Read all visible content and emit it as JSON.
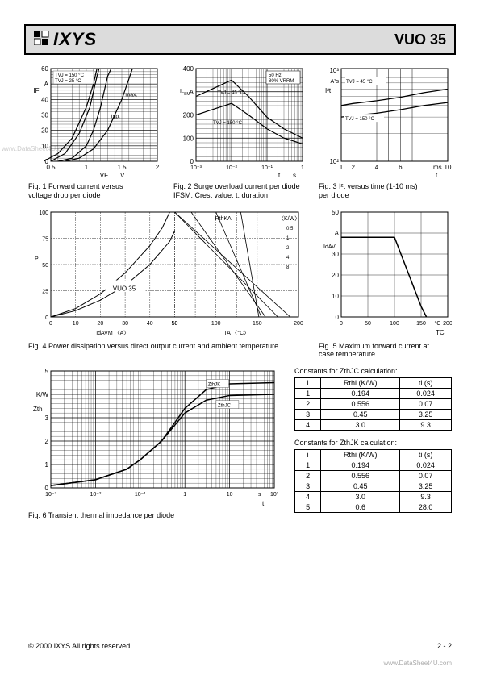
{
  "header": {
    "brand": "IXYS",
    "part": "VUO 35"
  },
  "fig1": {
    "caption": "Fig. 1  Forward current versus\n           voltage drop per diode",
    "xlabel": "VF",
    "xunit": "V",
    "ylabel": "IF",
    "yunit": "A",
    "xlim": [
      0.5,
      2
    ],
    "xticks": [
      "0.5",
      "1",
      "1.5",
      "2"
    ],
    "ylim": [
      0,
      60
    ],
    "yticks": [
      "0",
      "10",
      "20",
      "30",
      "40",
      "50",
      "60"
    ],
    "annotations": [
      "TVJ = 150 °C",
      "TVJ =  25 °C",
      "max.",
      "typ."
    ],
    "typ_curve": [
      [
        0.6,
        0
      ],
      [
        0.8,
        2
      ],
      [
        1.0,
        10
      ],
      [
        1.1,
        20
      ],
      [
        1.2,
        35
      ],
      [
        1.3,
        55
      ],
      [
        1.35,
        60
      ]
    ],
    "max_curve": [
      [
        0.7,
        0
      ],
      [
        0.9,
        2
      ],
      [
        1.1,
        8
      ],
      [
        1.3,
        20
      ],
      [
        1.5,
        40
      ],
      [
        1.65,
        60
      ]
    ],
    "curve150a": [
      [
        0.4,
        0
      ],
      [
        0.6,
        5
      ],
      [
        0.8,
        15
      ],
      [
        1.0,
        35
      ],
      [
        1.1,
        50
      ],
      [
        1.15,
        60
      ]
    ],
    "curve150b": [
      [
        0.5,
        0
      ],
      [
        0.7,
        5
      ],
      [
        0.9,
        18
      ],
      [
        1.05,
        35
      ],
      [
        1.15,
        55
      ],
      [
        1.18,
        60
      ]
    ],
    "grid_color": "#000",
    "line_color": "#000"
  },
  "fig2": {
    "caption": "Fig. 2  Surge overload current per diode\n           IFSM: Crest value. t: duration",
    "xlabel": "t",
    "xunit": "s",
    "ylabel": "IFSM",
    "yunit": "A",
    "xlim": [
      0.001,
      1
    ],
    "xticks": [
      "10⁻³",
      "10⁻²",
      "10⁻¹",
      "1"
    ],
    "ylim": [
      0,
      400
    ],
    "yticks": [
      "0",
      "100",
      "200",
      "300",
      "400"
    ],
    "annotations": [
      "50 Hz\n80% VRRM",
      "TVJ =  45 °C",
      "TVJ = 150 °C"
    ],
    "curve45": [
      [
        0.001,
        280
      ],
      [
        0.01,
        350
      ],
      [
        0.03,
        280
      ],
      [
        0.1,
        190
      ],
      [
        0.3,
        140
      ],
      [
        1,
        100
      ]
    ],
    "curve150": [
      [
        0.001,
        200
      ],
      [
        0.01,
        250
      ],
      [
        0.03,
        200
      ],
      [
        0.1,
        140
      ],
      [
        0.3,
        100
      ],
      [
        1,
        75
      ]
    ],
    "log_x": true
  },
  "fig3": {
    "caption": "Fig. 3  I²t versus time (1-10 ms)\n           per diode",
    "xlabel": "t",
    "xunit": "ms",
    "ylabel": "I²t",
    "yunit": "A²s",
    "xlim": [
      1,
      10
    ],
    "xticks": [
      "1",
      "2",
      "4",
      "6",
      "10"
    ],
    "ylim": [
      100,
      1000
    ],
    "yticks": [
      "10²",
      "10³"
    ],
    "annotations": [
      "TVJ =  45 °C",
      "TVJ = 150 °C"
    ],
    "curve45": [
      [
        1,
        400
      ],
      [
        2,
        420
      ],
      [
        4,
        450
      ],
      [
        6,
        490
      ],
      [
        8,
        550
      ],
      [
        10,
        600
      ]
    ],
    "curve150": [
      [
        1,
        300
      ],
      [
        2,
        310
      ],
      [
        4,
        330
      ],
      [
        6,
        360
      ],
      [
        8,
        400
      ],
      [
        10,
        430
      ]
    ],
    "log_y": true
  },
  "fig4": {
    "caption": "Fig. 4  Power dissipation versus direct output current and ambient temperature",
    "xlabel_left": "IdAVM  〈A〉",
    "xlabel_right": "TA  〈°C〉",
    "ylabel_left": "Ptot  〈W〉",
    "ylabel_right": "RthKA  〈K/W〉",
    "chip_label": "VUO 35",
    "xticks_left": [
      "0",
      "10",
      "20",
      "30",
      "40",
      "50"
    ],
    "xticks_right": [
      "50",
      "100",
      "150",
      "200"
    ],
    "yticks": [
      "0",
      "25",
      "50",
      "75",
      "100"
    ],
    "rth_values": [
      "0.5",
      "1",
      "2",
      "4",
      "8"
    ]
  },
  "fig5": {
    "caption": "Fig. 5  Maximum forward current at\n           case temperature",
    "xlabel": "TC",
    "xunit": "°C",
    "ylabel": "IdAV",
    "yunit": "A",
    "xlim": [
      0,
      200
    ],
    "xticks": [
      "0",
      "50",
      "100",
      "150",
      "200"
    ],
    "ylim": [
      0,
      50
    ],
    "yticks": [
      "0",
      "10",
      "20",
      "30",
      "40",
      "50"
    ],
    "curve": [
      [
        0,
        38
      ],
      [
        100,
        38
      ],
      [
        150,
        5
      ],
      [
        160,
        0
      ]
    ]
  },
  "fig6": {
    "caption": "Fig. 6  Transient thermal impedance per diode",
    "xlabel": "t",
    "xunit": "s",
    "ylabel": "Zth",
    "yunit": "K/W",
    "xlim": [
      0.001,
      100
    ],
    "xticks": [
      "10⁻³",
      "10⁻²",
      "10⁻¹",
      "1",
      "10",
      "10²"
    ],
    "ylim": [
      0,
      5
    ],
    "yticks": [
      "0",
      "1",
      "2",
      "3",
      "4",
      "5"
    ],
    "annotations": [
      "ZthJK",
      "ZthJC"
    ],
    "curveJK": [
      [
        0.001,
        0.1
      ],
      [
        0.01,
        0.35
      ],
      [
        0.05,
        0.8
      ],
      [
        0.1,
        1.2
      ],
      [
        0.3,
        2.0
      ],
      [
        1,
        3.4
      ],
      [
        3,
        4.2
      ],
      [
        10,
        4.45
      ],
      [
        100,
        4.5
      ]
    ],
    "curveJC": [
      [
        0.001,
        0.1
      ],
      [
        0.01,
        0.35
      ],
      [
        0.05,
        0.8
      ],
      [
        0.1,
        1.2
      ],
      [
        0.3,
        2.0
      ],
      [
        1,
        3.2
      ],
      [
        3,
        3.75
      ],
      [
        10,
        3.95
      ],
      [
        100,
        4.0
      ]
    ],
    "log_x": true
  },
  "table1": {
    "title": "Constants for ZthJC calculation:",
    "columns": [
      "i",
      "Rthi (K/W)",
      "ti (s)"
    ],
    "rows": [
      [
        "1",
        "0.194",
        "0.024"
      ],
      [
        "2",
        "0.556",
        "0.07"
      ],
      [
        "3",
        "0.45",
        "3.25"
      ],
      [
        "4",
        "3.0",
        "9.3"
      ]
    ]
  },
  "table2": {
    "title": "Constants for ZthJK calculation:",
    "columns": [
      "i",
      "Rthi (K/W)",
      "ti (s)"
    ],
    "rows": [
      [
        "1",
        "0.194",
        "0.024"
      ],
      [
        "2",
        "0.556",
        "0.07"
      ],
      [
        "3",
        "0.45",
        "3.25"
      ],
      [
        "4",
        "3.0",
        "9.3"
      ],
      [
        "5",
        "0.6",
        "28.0"
      ]
    ]
  },
  "footer": {
    "copyright": "© 2000 IXYS All rights reserved",
    "page": "2 - 2",
    "watermark": "www.DataSheet4U.com"
  }
}
